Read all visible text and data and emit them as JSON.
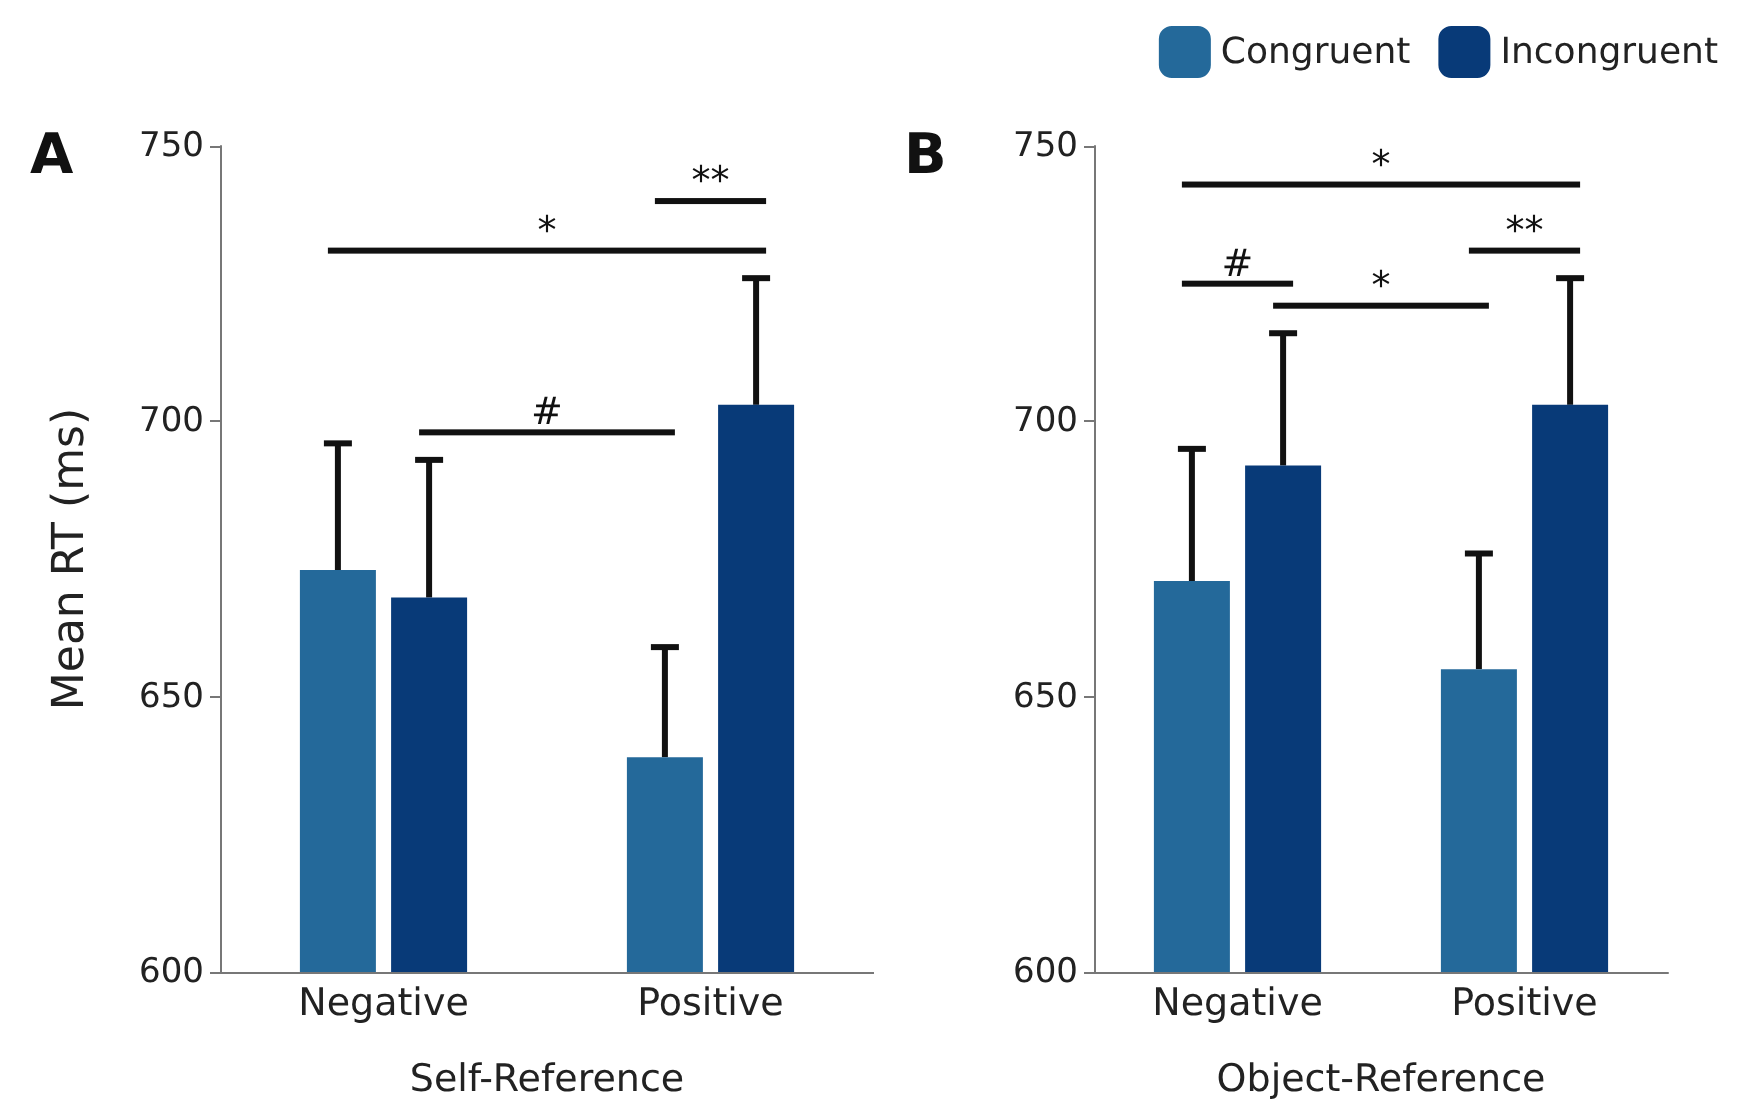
{
  "chart_data": [
    {
      "type": "bar",
      "title": "A",
      "xlabel": "Self-Reference",
      "ylabel": "Mean RT (ms)",
      "categories": [
        "Negative",
        "Positive"
      ],
      "series": [
        {
          "color": "#24699a",
          "values": [
            673,
            639
          ],
          "errors": [
            23,
            20
          ]
        },
        {
          "color": "#083a78",
          "values": [
            668,
            703
          ],
          "errors": [
            25,
            23
          ]
        }
      ],
      "ylim": [
        600,
        750
      ],
      "yticks": [
        600,
        650,
        700,
        750
      ],
      "legend": false,
      "annotations": [
        "**",
        "*",
        "#"
      ]
    },
    {
      "type": "bar",
      "title": "B",
      "xlabel": "Object-Reference",
      "categories": [
        "Negative",
        "Positive"
      ],
      "series": [
        {
          "name": "Congruent",
          "color": "#24699a",
          "values": [
            671,
            655
          ],
          "errors": [
            24,
            21
          ]
        },
        {
          "name": "Incongruent",
          "color": "#083a78",
          "values": [
            692,
            703
          ],
          "errors": [
            24,
            23
          ]
        }
      ],
      "ylim": [
        600,
        750
      ],
      "yticks": [
        600,
        650,
        700,
        750
      ],
      "legend": "top right",
      "annotations": [
        "*",
        "**",
        "#",
        "*"
      ]
    }
  ]
}
